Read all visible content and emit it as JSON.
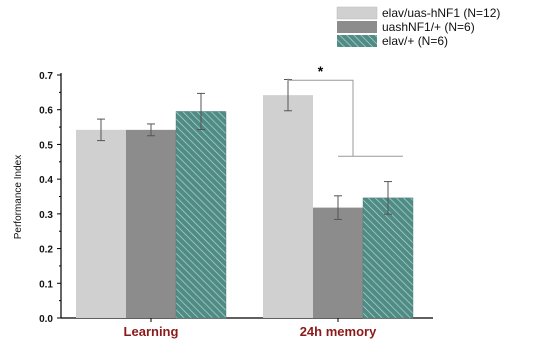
{
  "chart_data": {
    "type": "bar",
    "title": "",
    "xlabel": "",
    "ylabel": "Performance Index",
    "ylim": [
      0,
      0.7
    ],
    "yticks": [
      "0.0",
      "0.1",
      "0.2",
      "0.3",
      "0.4",
      "0.5",
      "0.6",
      "0.7"
    ],
    "categories": [
      "Learning",
      "24h memory"
    ],
    "category_color": "#8b1a1a",
    "legend_position": "top-right",
    "grid": false,
    "series": [
      {
        "name": "elav/uas-hNF1 (N=12)",
        "values": [
          0.542,
          0.642
        ],
        "errors": [
          0.031,
          0.045
        ],
        "color": "#d0d0d0",
        "pattern": "solid"
      },
      {
        "name": "uashNF1/+ (N=6)",
        "values": [
          0.542,
          0.318
        ],
        "errors": [
          0.017,
          0.034
        ],
        "color": "#8c8c8c",
        "pattern": "solid"
      },
      {
        "name": "elav/+ (N=6)",
        "values": [
          0.595,
          0.346
        ],
        "errors": [
          0.052,
          0.047
        ],
        "color": "#4f8c86",
        "pattern": "hatched"
      }
    ],
    "annotations": [
      {
        "text": "*",
        "between": "24h memory: elav/uas-hNF1 vs controls",
        "ybar": 0.685,
        "ybracket_low": 0.466
      }
    ]
  }
}
